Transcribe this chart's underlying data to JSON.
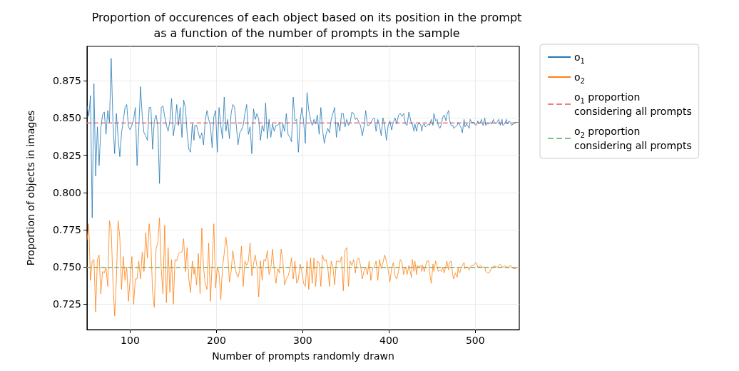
{
  "chart_data": {
    "type": "line",
    "title": "Proportion of occurences of each object based on its position in the prompt\nas a function of the number of prompts in the sample",
    "xlabel": "Number of prompts randomly drawn",
    "ylabel": "Proportion of objects in images",
    "xlim": [
      50,
      551
    ],
    "xticks": [
      100,
      200,
      300,
      400,
      500
    ],
    "ylim": [
      0.708,
      0.898
    ],
    "yticks": [
      0.725,
      {
        "value": 0.75,
        "label": "0.750"
      },
      0.775,
      {
        "value": 0.8,
        "label": "0.800"
      },
      0.825,
      {
        "value": 0.85,
        "label": "0.850"
      },
      0.875
    ],
    "grid": true,
    "legend": "right",
    "x": [
      50,
      52,
      54,
      56,
      58,
      60,
      62,
      64,
      66,
      68,
      70,
      72,
      74,
      76,
      78,
      80,
      82,
      84,
      86,
      88,
      90,
      92,
      94,
      96,
      98,
      100,
      102,
      104,
      106,
      108,
      110,
      112,
      114,
      116,
      118,
      120,
      122,
      124,
      126,
      128,
      130,
      132,
      134,
      136,
      138,
      140,
      142,
      144,
      146,
      148,
      150,
      152,
      154,
      156,
      158,
      160,
      162,
      164,
      166,
      168,
      170,
      172,
      174,
      175,
      177,
      179,
      181,
      183,
      185,
      187,
      189,
      191,
      193,
      195,
      197,
      199,
      201,
      203,
      205,
      207,
      209,
      211,
      213,
      215,
      217,
      219,
      221,
      223,
      225,
      227,
      229,
      231,
      233,
      235,
      237,
      239,
      241,
      243,
      245,
      247,
      249,
      251,
      253,
      255,
      257,
      259,
      261,
      263,
      265,
      267,
      269,
      271,
      273,
      275,
      277,
      279,
      281,
      283,
      285,
      287,
      289,
      291,
      293,
      295,
      297,
      299,
      301,
      303,
      305,
      307,
      309,
      311,
      313,
      315,
      317,
      319,
      321,
      323,
      325,
      327,
      329,
      331,
      333,
      335,
      337,
      339,
      341,
      343,
      345,
      347,
      349,
      351,
      353,
      355,
      357,
      359,
      361,
      363,
      365,
      367,
      369,
      371,
      373,
      375,
      377,
      379,
      381,
      383,
      385,
      387,
      389,
      391,
      393,
      395,
      397,
      399,
      401,
      403,
      405,
      407,
      409,
      411,
      413,
      415,
      417,
      419,
      421,
      423,
      426,
      427,
      429,
      430,
      432,
      433,
      435,
      437,
      438,
      439,
      441,
      442,
      444,
      446,
      447,
      449,
      451,
      452,
      454,
      456,
      457,
      459,
      461,
      462,
      464,
      466,
      467,
      469,
      470,
      472,
      474,
      475,
      477,
      479,
      480,
      482,
      484,
      485,
      487,
      488,
      490,
      491,
      493,
      494,
      496,
      498,
      499,
      501,
      503,
      504,
      506,
      507,
      509,
      511,
      512,
      514,
      516,
      517,
      519,
      521,
      522,
      524,
      526,
      527,
      529,
      531,
      532,
      534,
      536,
      537,
      539,
      541,
      542,
      544,
      546,
      547,
      550
    ],
    "series": [
      {
        "name": "o$_{1}$",
        "color": "#1f77b4",
        "values": [
          0.858,
          0.851,
          0.865,
          0.783,
          0.873,
          0.811,
          0.844,
          0.818,
          0.843,
          0.852,
          0.854,
          0.839,
          0.855,
          0.847,
          0.89,
          0.848,
          0.826,
          0.853,
          0.837,
          0.824,
          0.84,
          0.848,
          0.857,
          0.859,
          0.844,
          0.842,
          0.845,
          0.849,
          0.857,
          0.818,
          0.843,
          0.871,
          0.851,
          0.84,
          0.838,
          0.835,
          0.857,
          0.857,
          0.829,
          0.848,
          0.852,
          0.845,
          0.806,
          0.857,
          0.858,
          0.851,
          0.845,
          0.841,
          0.848,
          0.863,
          0.838,
          0.846,
          0.859,
          0.845,
          0.857,
          0.837,
          0.862,
          0.857,
          0.84,
          0.829,
          0.827,
          0.846,
          0.835,
          0.845,
          0.845,
          0.84,
          0.836,
          0.84,
          0.832,
          0.848,
          0.855,
          0.849,
          0.845,
          0.83,
          0.851,
          0.855,
          0.827,
          0.857,
          0.845,
          0.836,
          0.864,
          0.841,
          0.849,
          0.836,
          0.853,
          0.859,
          0.857,
          0.845,
          0.832,
          0.84,
          0.842,
          0.845,
          0.853,
          0.859,
          0.839,
          0.844,
          0.826,
          0.856,
          0.849,
          0.853,
          0.849,
          0.835,
          0.845,
          0.841,
          0.86,
          0.836,
          0.849,
          0.837,
          0.846,
          0.841,
          0.845,
          0.845,
          0.847,
          0.837,
          0.846,
          0.841,
          0.853,
          0.839,
          0.837,
          0.834,
          0.864,
          0.848,
          0.849,
          0.827,
          0.848,
          0.857,
          0.848,
          0.833,
          0.867,
          0.855,
          0.849,
          0.845,
          0.849,
          0.846,
          0.852,
          0.839,
          0.857,
          0.842,
          0.833,
          0.839,
          0.843,
          0.84,
          0.849,
          0.853,
          0.857,
          0.837,
          0.847,
          0.841,
          0.853,
          0.853,
          0.844,
          0.849,
          0.845,
          0.847,
          0.854,
          0.853,
          0.849,
          0.85,
          0.847,
          0.845,
          0.838,
          0.844,
          0.855,
          0.845,
          0.845,
          0.847,
          0.849,
          0.85,
          0.841,
          0.849,
          0.845,
          0.838,
          0.85,
          0.845,
          0.835,
          0.845,
          0.848,
          0.842,
          0.847,
          0.85,
          0.846,
          0.852,
          0.853,
          0.851,
          0.853,
          0.846,
          0.845,
          0.854,
          0.846,
          0.846,
          0.841,
          0.846,
          0.841,
          0.845,
          0.847,
          0.845,
          0.841,
          0.845,
          0.846,
          0.844,
          0.845,
          0.846,
          0.845,
          0.849,
          0.845,
          0.853,
          0.848,
          0.849,
          0.845,
          0.843,
          0.846,
          0.85,
          0.852,
          0.848,
          0.852,
          0.855,
          0.849,
          0.845,
          0.845,
          0.843,
          0.844,
          0.845,
          0.847,
          0.845,
          0.843,
          0.84,
          0.849,
          0.844,
          0.846,
          0.845,
          0.843,
          0.849,
          0.847,
          0.847,
          0.846,
          0.845,
          0.848,
          0.846,
          0.847,
          0.849,
          0.845,
          0.85,
          0.845,
          0.846,
          0.846,
          0.847,
          0.846,
          0.849,
          0.847,
          0.846,
          0.848,
          0.849,
          0.845,
          0.849,
          0.845,
          0.846,
          0.849,
          0.846,
          0.848,
          0.847,
          0.845,
          0.846,
          0.847,
          0.847,
          0.847
        ]
      },
      {
        "name": "o$_{2}$",
        "color": "#ff7f0e",
        "values": [
          0.768,
          0.779,
          0.741,
          0.754,
          0.755,
          0.72,
          0.755,
          0.758,
          0.732,
          0.747,
          0.746,
          0.75,
          0.737,
          0.781,
          0.775,
          0.741,
          0.717,
          0.741,
          0.781,
          0.77,
          0.735,
          0.757,
          0.741,
          0.75,
          0.727,
          0.742,
          0.757,
          0.725,
          0.742,
          0.742,
          0.754,
          0.742,
          0.76,
          0.747,
          0.773,
          0.756,
          0.779,
          0.765,
          0.733,
          0.723,
          0.762,
          0.766,
          0.783,
          0.749,
          0.732,
          0.778,
          0.726,
          0.763,
          0.733,
          0.755,
          0.725,
          0.755,
          0.754,
          0.759,
          0.76,
          0.76,
          0.769,
          0.747,
          0.763,
          0.742,
          0.733,
          0.754,
          0.745,
          0.75,
          0.738,
          0.759,
          0.732,
          0.776,
          0.75,
          0.739,
          0.735,
          0.766,
          0.727,
          0.752,
          0.779,
          0.736,
          0.75,
          0.746,
          0.728,
          0.75,
          0.759,
          0.77,
          0.76,
          0.74,
          0.747,
          0.761,
          0.752,
          0.746,
          0.743,
          0.748,
          0.764,
          0.737,
          0.754,
          0.751,
          0.754,
          0.766,
          0.744,
          0.752,
          0.758,
          0.75,
          0.73,
          0.754,
          0.741,
          0.755,
          0.754,
          0.761,
          0.745,
          0.749,
          0.762,
          0.748,
          0.739,
          0.749,
          0.746,
          0.762,
          0.754,
          0.738,
          0.742,
          0.744,
          0.748,
          0.756,
          0.742,
          0.754,
          0.739,
          0.742,
          0.752,
          0.747,
          0.739,
          0.737,
          0.754,
          0.735,
          0.756,
          0.739,
          0.756,
          0.737,
          0.754,
          0.753,
          0.737,
          0.758,
          0.754,
          0.755,
          0.75,
          0.737,
          0.754,
          0.75,
          0.738,
          0.754,
          0.754,
          0.753,
          0.757,
          0.734,
          0.761,
          0.763,
          0.737,
          0.754,
          0.751,
          0.755,
          0.746,
          0.755,
          0.756,
          0.751,
          0.742,
          0.747,
          0.75,
          0.745,
          0.754,
          0.741,
          0.749,
          0.75,
          0.754,
          0.741,
          0.755,
          0.749,
          0.753,
          0.758,
          0.754,
          0.748,
          0.74,
          0.749,
          0.753,
          0.744,
          0.742,
          0.747,
          0.755,
          0.753,
          0.745,
          0.75,
          0.745,
          0.751,
          0.743,
          0.755,
          0.747,
          0.754,
          0.745,
          0.751,
          0.75,
          0.751,
          0.747,
          0.751,
          0.747,
          0.75,
          0.754,
          0.754,
          0.746,
          0.739,
          0.752,
          0.747,
          0.754,
          0.75,
          0.747,
          0.748,
          0.747,
          0.75,
          0.746,
          0.751,
          0.754,
          0.748,
          0.753,
          0.754,
          0.744,
          0.742,
          0.746,
          0.743,
          0.749,
          0.746,
          0.75,
          0.751,
          0.753,
          0.749,
          0.75,
          0.75,
          0.748,
          0.75,
          0.751,
          0.751,
          0.752,
          0.753,
          0.75,
          0.75,
          0.751,
          0.75,
          0.75,
          0.75,
          0.747,
          0.746,
          0.746,
          0.747,
          0.75,
          0.75,
          0.751,
          0.75,
          0.75,
          0.751,
          0.752,
          0.75,
          0.75,
          0.751,
          0.75,
          0.75,
          0.75,
          0.751,
          0.75,
          0.749,
          0.749,
          0.749,
          0.75
        ]
      }
    ],
    "ref_lines": [
      {
        "axis": "y",
        "value": 0.8466,
        "label": "o$_{1}$ proportion\nconsidering all prompts",
        "color": "#f08080",
        "line_style": "dashed"
      },
      {
        "axis": "y",
        "value": 0.7497,
        "label": "o$_{2}$ proportion\nconsidering all prompts",
        "color": "#7fbf7f",
        "line_style": "dashed"
      }
    ]
  }
}
